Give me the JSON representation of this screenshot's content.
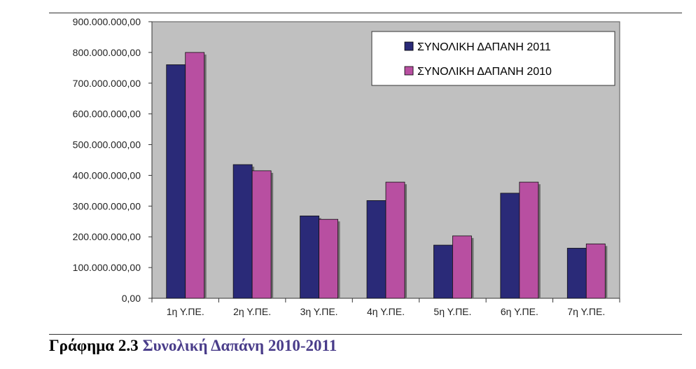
{
  "caption": {
    "label": "Γράφημα 2.3",
    "title": "Συνολική Δαπάνη 2010-2011"
  },
  "colors": {
    "plot_bg": "#c0c0c0",
    "series_2011": "#2a2a78",
    "series_2010": "#b84fa1"
  },
  "chart_data": {
    "type": "bar",
    "title": "",
    "xlabel": "",
    "ylabel": "",
    "categories": [
      "1η Υ.ΠΕ.",
      "2η Υ.ΠΕ.",
      "3η Υ.ΠΕ.",
      "4η Υ.ΠΕ.",
      "5η Υ.ΠΕ.",
      "6η Υ.ΠΕ.",
      "7η Υ.ΠΕ."
    ],
    "series": [
      {
        "name": "ΣΥΝΟΛΙΚΗ ΔΑΠΑΝΗ 2011",
        "color": "#2a2a78",
        "values": [
          760000000,
          435000000,
          268000000,
          318000000,
          173000000,
          342000000,
          163000000
        ]
      },
      {
        "name": "ΣΥΝΟΛΙΚΗ ΔΑΠΑΝΗ 2010",
        "color": "#b84fa1",
        "values": [
          800000000,
          415000000,
          257000000,
          378000000,
          203000000,
          378000000,
          177000000
        ]
      }
    ],
    "ylim": [
      0,
      900000000
    ],
    "yticks": [
      0,
      100000000,
      200000000,
      300000000,
      400000000,
      500000000,
      600000000,
      700000000,
      800000000,
      900000000
    ],
    "ytick_labels": [
      "0,00",
      "100.000.000,00",
      "200.000.000,00",
      "300.000.000,00",
      "400.000.000,00",
      "500.000.000,00",
      "600.000.000,00",
      "700.000.000,00",
      "800.000.000,00",
      "900.000.000,00"
    ],
    "grid": false,
    "legend_position": "top-right"
  }
}
